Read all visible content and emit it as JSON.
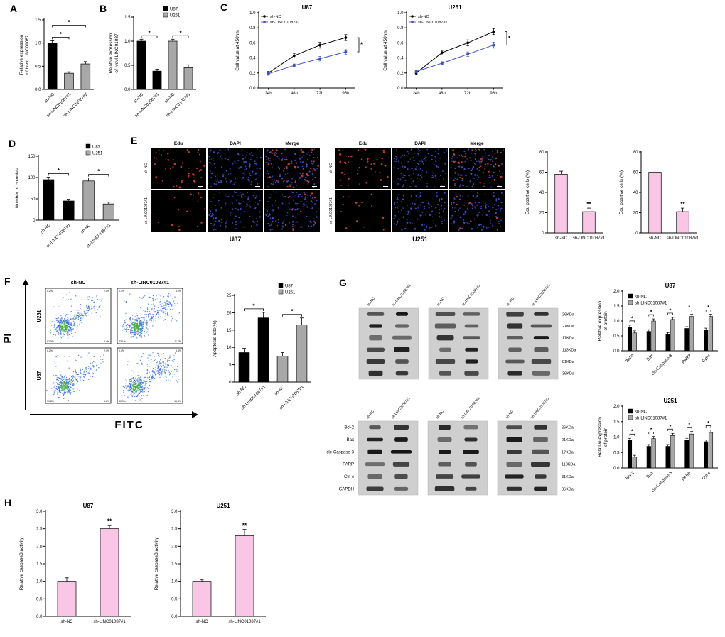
{
  "figure": {
    "panel_labels": {
      "A": "A",
      "B": "B",
      "C": "C",
      "D": "D",
      "E": "E",
      "F": "F",
      "G": "G",
      "H": "H"
    }
  },
  "panel_e": {
    "column_headers": [
      "Edu",
      "DAPI",
      "Merge"
    ],
    "row_labels": [
      "sh-NC",
      "sh-LINC01087#1"
    ],
    "group_labels": [
      "U87",
      "U251"
    ],
    "edu_dot_color": "#e8443a",
    "dapi_dot_color": "#4157d8"
  },
  "panel_f": {
    "column_headers": [
      "sh-NC",
      "sh-LINC01087#1"
    ],
    "row_labels": [
      "U251",
      "U87"
    ],
    "y_axis_label": "PI",
    "x_axis_label": "FITC",
    "plots": [
      {
        "row": "U251",
        "col": "sh-NC",
        "quadrants": [
          "0.2%",
          "2.1%",
          "92.3%",
          "5.4%"
        ]
      },
      {
        "row": "U251",
        "col": "sh-LINC01087#1",
        "quadrants": [
          "0.3%",
          "4.9%",
          "83.1%",
          "11.7%"
        ]
      },
      {
        "row": "U87",
        "col": "sh-NC",
        "quadrants": [
          "0.2%",
          "2.4%",
          "91.8%",
          "5.6%"
        ]
      },
      {
        "row": "U87",
        "col": "sh-LINC01087#1",
        "quadrants": [
          "0.4%",
          "5.3%",
          "80.9%",
          "13.4%"
        ]
      }
    ]
  },
  "panel_g": {
    "lane_labels": [
      "sh-NC",
      "sh-LINC01087#1"
    ],
    "protein_labels": [
      "Bcl-2",
      "Bax",
      "cle-Caspase-3",
      "PARP",
      "Cyt-c",
      "GAPDH"
    ],
    "kda_labels": [
      "26KDa",
      "21KDa",
      "17KDa",
      "113KDa",
      "81KDa",
      "36KDa"
    ]
  },
  "chart_data": [
    {
      "id": "A",
      "type": "bar",
      "title": "",
      "ylabel": "Relative expression of Ivevl LINC01087",
      "ylim": [
        0,
        1.5
      ],
      "yticks": [
        0,
        0.5,
        1,
        1.5
      ],
      "ytick_labels": [
        "0.0",
        "0.5",
        "1.0",
        "1.5"
      ],
      "categories": [
        "sh-NC",
        "sh-LINC01087#1",
        "sh-LINC01087#2"
      ],
      "values": [
        1.0,
        0.35,
        0.55
      ],
      "errors": [
        0.05,
        0.03,
        0.05
      ],
      "bar_colors": [
        "#000000",
        "#a8a8a8",
        "#a8a8a8"
      ],
      "sig": [
        {
          "from": 0,
          "to": 1,
          "label": "*"
        },
        {
          "from": 0,
          "to": 2,
          "label": "*"
        }
      ]
    },
    {
      "id": "B",
      "type": "bar",
      "title": "",
      "ylabel": "Relative expression of Ivevl LINC01087",
      "ylim": [
        0,
        1.5
      ],
      "yticks": [
        0,
        0.5,
        1,
        1.5
      ],
      "ytick_labels": [
        "0.0",
        "0.5",
        "1.0",
        "1.5"
      ],
      "categories": [
        "sh-NC",
        "sh-LINC01087#1",
        "sh-NC",
        "sh-LINC01087#1"
      ],
      "values": [
        1.0,
        0.38,
        1.0,
        0.45
      ],
      "errors": [
        0.04,
        0.04,
        0.04,
        0.06
      ],
      "bar_colors": [
        "#000000",
        "#000000",
        "#a8a8a8",
        "#a8a8a8"
      ],
      "legend": [
        {
          "label": "U87",
          "color": "#000000"
        },
        {
          "label": "U251",
          "color": "#a8a8a8"
        }
      ],
      "legend_pos": "top-right",
      "sig": [
        {
          "from": 0,
          "to": 1,
          "label": "*"
        },
        {
          "from": 2,
          "to": 3,
          "label": "*"
        }
      ]
    },
    {
      "id": "C_U87",
      "type": "line",
      "title": "U87",
      "ylabel": "Cell value at 450nm",
      "ylim": [
        0,
        1
      ],
      "yticks": [
        0,
        0.2,
        0.4,
        0.6,
        0.8,
        1
      ],
      "ytick_labels": [
        "0.0",
        "0.2",
        "0.4",
        "0.6",
        "0.8",
        "1.0"
      ],
      "x_labels": [
        "24h",
        "48h",
        "72h",
        "96h"
      ],
      "series": [
        {
          "name": "sh-NC",
          "color": "#000000",
          "marker": "circle",
          "values": [
            0.2,
            0.43,
            0.57,
            0.67
          ],
          "errors": [
            0.02,
            0.03,
            0.04,
            0.04
          ]
        },
        {
          "name": "sh-LINC01087#1",
          "color": "#3a50c2",
          "marker": "square",
          "values": [
            0.19,
            0.3,
            0.39,
            0.48
          ],
          "errors": [
            0.02,
            0.02,
            0.03,
            0.03
          ]
        }
      ],
      "sig_right": "*"
    },
    {
      "id": "C_U251",
      "type": "line",
      "title": "U251",
      "ylabel": "Cell value at 450nm",
      "ylim": [
        0,
        1
      ],
      "yticks": [
        0,
        0.2,
        0.4,
        0.6,
        0.8,
        1
      ],
      "ytick_labels": [
        "0.0",
        "0.2",
        "0.4",
        "0.6",
        "0.8",
        "1.0"
      ],
      "x_labels": [
        "24h",
        "48h",
        "72h",
        "96h"
      ],
      "series": [
        {
          "name": "sh-NC",
          "color": "#000000",
          "marker": "circle",
          "values": [
            0.2,
            0.47,
            0.6,
            0.75
          ],
          "errors": [
            0.02,
            0.03,
            0.04,
            0.04
          ]
        },
        {
          "name": "sh-LINC01087#1",
          "color": "#3a50c2",
          "marker": "square",
          "values": [
            0.22,
            0.33,
            0.45,
            0.57
          ],
          "errors": [
            0.02,
            0.02,
            0.03,
            0.04
          ]
        }
      ],
      "sig_right": "*"
    },
    {
      "id": "D",
      "type": "bar",
      "title": "",
      "ylabel": "Number of colonies",
      "ylim": [
        0,
        150
      ],
      "yticks": [
        0,
        50,
        100,
        150
      ],
      "ytick_labels": [
        "0",
        "50",
        "100",
        "150"
      ],
      "categories": [
        "sh-NC",
        "sh-LINC01087#1",
        "sh-NC",
        "sh-LINC01087#1"
      ],
      "values": [
        95,
        45,
        92,
        38
      ],
      "errors": [
        6,
        4,
        7,
        4
      ],
      "bar_colors": [
        "#000000",
        "#000000",
        "#a8a8a8",
        "#a8a8a8"
      ],
      "legend": [
        {
          "label": "U87",
          "color": "#000000"
        },
        {
          "label": "U251",
          "color": "#a8a8a8"
        }
      ],
      "legend_pos": "top-right",
      "sig": [
        {
          "from": 0,
          "to": 1,
          "label": "*"
        },
        {
          "from": 2,
          "to": 3,
          "label": "*"
        }
      ]
    },
    {
      "id": "E_U87",
      "type": "bar",
      "title": "",
      "ylabel": "Edu positive cells (%)",
      "ylim": [
        0,
        80
      ],
      "yticks": [
        0,
        20,
        40,
        60,
        80
      ],
      "ytick_labels": [
        "0",
        "20",
        "40",
        "60",
        "80"
      ],
      "categories": [
        "sh-NC",
        "sh-LINC01087#1"
      ],
      "values": [
        58,
        21
      ],
      "errors": [
        3,
        3.5
      ],
      "bar_colors": [
        "#f9c6e5",
        "#f9c6e5"
      ],
      "stars": [
        "",
        "**"
      ]
    },
    {
      "id": "E_U251",
      "type": "bar",
      "title": "",
      "ylabel": "Edu positive cells (%)",
      "ylim": [
        0,
        80
      ],
      "yticks": [
        0,
        20,
        40,
        60,
        80
      ],
      "ytick_labels": [
        "0",
        "20",
        "40",
        "60",
        "80"
      ],
      "categories": [
        "sh-NC",
        "sh-LINC01087#1"
      ],
      "values": [
        60,
        21
      ],
      "errors": [
        2,
        3.5
      ],
      "bar_colors": [
        "#f9c6e5",
        "#f9c6e5"
      ],
      "stars": [
        "",
        "**"
      ]
    },
    {
      "id": "F",
      "type": "bar",
      "title": "",
      "ylabel": "Apoptosis rate(%)",
      "ylim": [
        0,
        25
      ],
      "yticks": [
        0,
        5,
        10,
        15,
        20,
        25
      ],
      "ytick_labels": [
        "0",
        "5",
        "10",
        "15",
        "20",
        "25"
      ],
      "categories": [
        "sh-NC",
        "sh-LINC01087#1",
        "sh-NC",
        "sh-LINC01087#1"
      ],
      "values": [
        8.5,
        18.5,
        7.5,
        16.5
      ],
      "errors": [
        1.2,
        1.6,
        1,
        2
      ],
      "bar_colors": [
        "#000000",
        "#000000",
        "#a8a8a8",
        "#a8a8a8"
      ],
      "legend": [
        {
          "label": "U87",
          "color": "#000000"
        },
        {
          "label": "U251",
          "color": "#a8a8a8"
        }
      ],
      "legend_pos": "top-right",
      "sig": [
        {
          "from": 0,
          "to": 1,
          "label": "*"
        },
        {
          "from": 2,
          "to": 3,
          "label": "*"
        }
      ]
    },
    {
      "id": "G_U87",
      "type": "grouped-bar",
      "title": "U87",
      "ylabel": "Relative expression of protein",
      "ylim": [
        0,
        2
      ],
      "yticks": [
        0,
        0.5,
        1,
        1.5,
        2
      ],
      "ytick_labels": [
        "0.0",
        "0.5",
        "1.0",
        "1.5",
        "2.0"
      ],
      "categories": [
        "Bcl-2",
        "Bax",
        "cle-Caspase-3",
        "PARP",
        "Cyt-c"
      ],
      "series": [
        {
          "name": "sh-NC",
          "color": "#000000",
          "values": [
            0.8,
            0.65,
            0.55,
            0.75,
            0.7
          ],
          "errors": [
            0.06,
            0.06,
            0.06,
            0.06,
            0.06
          ]
        },
        {
          "name": "sh-LINC01087#1",
          "color": "#a8a8a8",
          "values": [
            0.6,
            1,
            1.05,
            1.15,
            1.15
          ],
          "errors": [
            0.07,
            0.07,
            0.07,
            0.08,
            0.08
          ]
        }
      ],
      "pair_sig": "*",
      "legend_pos": "top-left"
    },
    {
      "id": "G_U251",
      "type": "grouped-bar",
      "title": "U251",
      "ylabel": "Relative expression of protein",
      "ylim": [
        0,
        2
      ],
      "yticks": [
        0,
        0.5,
        1,
        1.5,
        2
      ],
      "ytick_labels": [
        "0.0",
        "0.5",
        "1.0",
        "1.5",
        "2.0"
      ],
      "categories": [
        "Bcl-2",
        "Bax",
        "cle-Caspase-3",
        "PARP",
        "Cyt-c"
      ],
      "series": [
        {
          "name": "sh-NC",
          "color": "#000000",
          "values": [
            0.9,
            0.7,
            0.7,
            0.9,
            0.85
          ],
          "errors": [
            0.06,
            0.06,
            0.06,
            0.06,
            0.06
          ]
        },
        {
          "name": "sh-LINC01087#1",
          "color": "#a8a8a8",
          "values": [
            0.35,
            0.95,
            1.05,
            1.1,
            1.15
          ],
          "errors": [
            0.06,
            0.07,
            0.07,
            0.08,
            0.08
          ]
        }
      ],
      "pair_sig": "*",
      "legend_pos": "top-left"
    },
    {
      "id": "H_U87",
      "type": "bar",
      "title": "U87",
      "ylabel": "Relative caspase3 activity",
      "ylim": [
        0,
        3
      ],
      "yticks": [
        0,
        0.5,
        1,
        1.5,
        2,
        2.5,
        3
      ],
      "ytick_labels": [
        "0.0",
        "0.5",
        "1.0",
        "1.5",
        "2.0",
        "2.5",
        "3.0"
      ],
      "categories": [
        "sh-NC",
        "sh-LINC01087#1"
      ],
      "values": [
        1,
        2.5
      ],
      "errors": [
        0.1,
        0.1
      ],
      "bar_colors": [
        "#f9c6e5",
        "#f9c6e5"
      ],
      "stars": [
        "",
        "**"
      ]
    },
    {
      "id": "H_U251",
      "type": "bar",
      "title": "U251",
      "ylabel": "Relative caspase3 activity",
      "ylim": [
        0,
        3
      ],
      "yticks": [
        0,
        0.5,
        1,
        1.5,
        2,
        2.5,
        3
      ],
      "ytick_labels": [
        "0.0",
        "0.5",
        "1.0",
        "1.5",
        "2.0",
        "2.5",
        "3.0"
      ],
      "categories": [
        "sh-NC",
        "sh-LINC01087#1"
      ],
      "values": [
        1,
        2.3
      ],
      "errors": [
        0.05,
        0.18
      ],
      "bar_colors": [
        "#f9c6e5",
        "#f9c6e5"
      ],
      "stars": [
        "",
        "**"
      ]
    }
  ]
}
